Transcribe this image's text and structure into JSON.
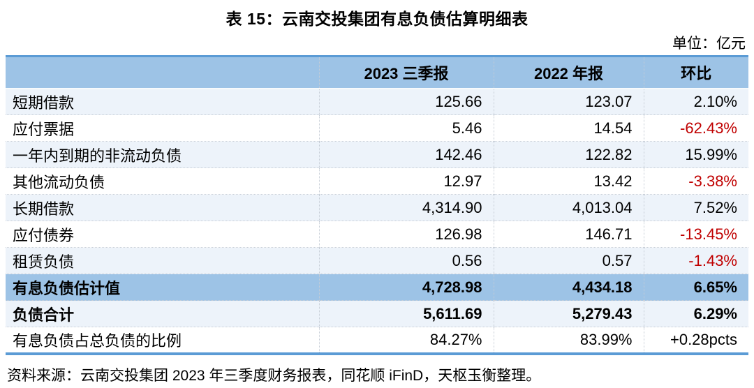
{
  "title": "表 15：云南交投集团有息负债估算明细表",
  "unit_label": "单位：亿元",
  "source_note": "资料来源：云南交投集团 2023 年三季度财务报表，同花顺 iFinD，天枢玉衡整理。",
  "colors": {
    "header_bg": "#9DC3E6",
    "highlight_bg": "#9DC3E6",
    "stripe_bg": "#EDF3FA",
    "accent_border": "#5B9BD5",
    "negative_text": "#C00000"
  },
  "chart_data": {
    "type": "table",
    "columns": [
      "",
      "2023 三季报",
      "2022 年报",
      "环比"
    ],
    "rows": [
      {
        "label": "短期借款",
        "v2023q3": "125.66",
        "v2022": "123.07",
        "change": "2.10%",
        "change_negative": false,
        "bold": false,
        "bg": "stripe"
      },
      {
        "label": "应付票据",
        "v2023q3": "5.46",
        "v2022": "14.54",
        "change": "-62.43%",
        "change_negative": true,
        "bold": false,
        "bg": "white"
      },
      {
        "label": "一年内到期的非流动负债",
        "v2023q3": "142.46",
        "v2022": "122.82",
        "change": "15.99%",
        "change_negative": false,
        "bold": false,
        "bg": "stripe"
      },
      {
        "label": "其他流动负债",
        "v2023q3": "12.97",
        "v2022": "13.42",
        "change": "-3.38%",
        "change_negative": true,
        "bold": false,
        "bg": "white"
      },
      {
        "label": "长期借款",
        "v2023q3": "4,314.90",
        "v2022": "4,013.04",
        "change": "7.52%",
        "change_negative": false,
        "bold": false,
        "bg": "stripe"
      },
      {
        "label": "应付债券",
        "v2023q3": "126.98",
        "v2022": "146.71",
        "change": "-13.45%",
        "change_negative": true,
        "bold": false,
        "bg": "white"
      },
      {
        "label": "租赁负债",
        "v2023q3": "0.56",
        "v2022": "0.57",
        "change": "-1.43%",
        "change_negative": true,
        "bold": false,
        "bg": "stripe"
      },
      {
        "label": "有息负债估计值",
        "v2023q3": "4,728.98",
        "v2022": "4,434.18",
        "change": "6.65%",
        "change_negative": false,
        "bold": true,
        "bg": "highlight"
      },
      {
        "label": "负债合计",
        "v2023q3": "5,611.69",
        "v2022": "5,279.43",
        "change": "6.29%",
        "change_negative": false,
        "bold": true,
        "bg": "stripe"
      },
      {
        "label": "有息负债占总负债的比例",
        "v2023q3": "84.27%",
        "v2022": "83.99%",
        "change": "+0.28pcts",
        "change_negative": false,
        "bold": false,
        "bg": "white"
      }
    ]
  }
}
